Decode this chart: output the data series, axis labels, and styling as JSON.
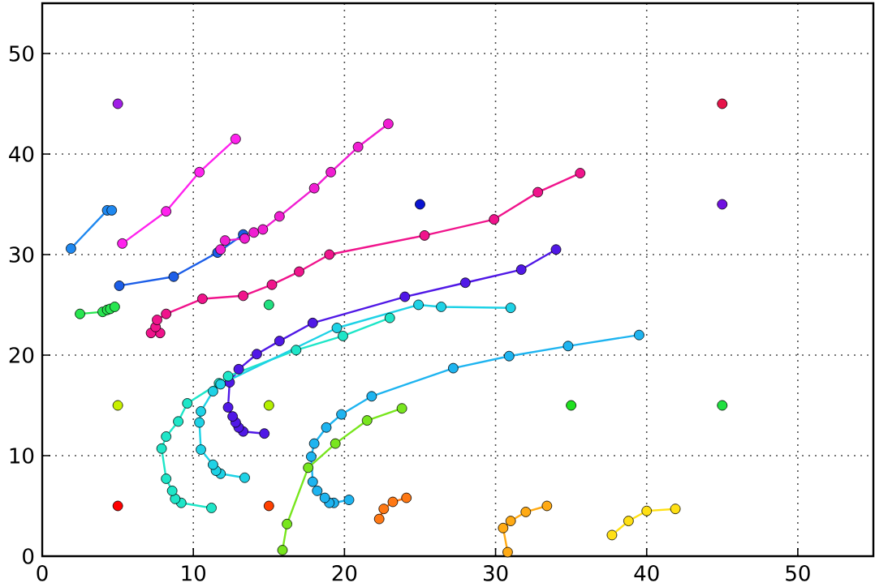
{
  "chart_data": {
    "type": "line",
    "xlim": [
      0,
      55
    ],
    "ylim": [
      0,
      55
    ],
    "xticks": [
      0,
      10,
      20,
      30,
      40,
      50
    ],
    "yticks": [
      0,
      10,
      20,
      30,
      40,
      50
    ],
    "grid": true,
    "marker": "circle",
    "line_style": "solid",
    "series": [
      {
        "color": "#ff22ee",
        "x": [
          5.3,
          8.2,
          10.4,
          12.8
        ],
        "values": [
          31.1,
          34.3,
          38.2,
          41.5
        ]
      },
      {
        "color": "#1e88f0",
        "x": [
          1.9,
          4.3,
          4.6
        ],
        "values": [
          30.6,
          34.4,
          34.4
        ]
      },
      {
        "color": "#1c5ee8",
        "x": [
          5.1,
          8.7,
          11.6,
          13.3
        ],
        "values": [
          26.9,
          27.8,
          30.2,
          32.0
        ]
      },
      {
        "color": "#f01ed2",
        "x": [
          11.8,
          12.1,
          13.4,
          14.0,
          14.6,
          15.7,
          18.0,
          19.1,
          20.9,
          22.9
        ],
        "values": [
          30.5,
          31.4,
          31.6,
          32.2,
          32.5,
          33.8,
          36.6,
          38.2,
          40.7,
          43.0
        ]
      },
      {
        "color": "#f0148c",
        "x": [
          7.8,
          7.2,
          7.5,
          7.6,
          8.2,
          10.6,
          13.3,
          15.2,
          17.0,
          19.0,
          25.3,
          29.9,
          32.8,
          35.6
        ],
        "values": [
          22.2,
          22.2,
          22.8,
          23.5,
          24.1,
          25.6,
          25.9,
          27.0,
          28.3,
          30.0,
          31.9,
          33.5,
          36.2,
          38.1
        ]
      },
      {
        "color": "#28e650",
        "x": [
          2.5,
          4.0,
          4.3,
          4.5,
          4.8
        ],
        "values": [
          24.1,
          24.3,
          24.5,
          24.6,
          24.8
        ]
      },
      {
        "color": "#5018e6",
        "x": [
          14.7,
          13.3,
          13.0,
          12.8,
          12.6,
          12.3,
          12.4,
          13.0,
          14.2,
          15.7,
          17.9,
          24.0,
          28.0,
          31.7,
          34.0
        ],
        "values": [
          12.2,
          12.4,
          12.8,
          13.3,
          13.9,
          14.8,
          17.3,
          18.6,
          20.1,
          21.4,
          23.2,
          25.8,
          27.2,
          28.5,
          30.5
        ]
      },
      {
        "color": "#1ee6c8",
        "x": [
          11.2,
          9.2,
          8.8,
          8.6,
          8.2,
          7.9,
          8.2,
          9.0,
          9.6,
          11.7,
          12.3,
          16.8,
          19.9,
          23.0
        ],
        "values": [
          4.8,
          5.3,
          5.7,
          6.5,
          7.7,
          10.7,
          11.9,
          13.4,
          15.2,
          17.2,
          17.9,
          20.5,
          21.9,
          23.7
        ]
      },
      {
        "color": "#1ed2e6",
        "x": [
          13.4,
          11.8,
          11.5,
          11.3,
          10.5,
          10.4,
          10.5,
          11.3,
          11.8,
          19.5,
          24.9,
          26.4,
          31.0
        ],
        "values": [
          7.8,
          8.2,
          8.5,
          9.1,
          10.6,
          13.3,
          14.4,
          16.4,
          17.1,
          22.7,
          25.0,
          24.8,
          24.7
        ]
      },
      {
        "color": "#1eb4f0",
        "x": [
          20.3,
          19.3,
          19.0,
          18.7,
          18.2,
          17.9,
          17.8,
          18.0,
          18.8,
          19.8,
          21.8,
          27.2,
          30.9,
          34.8,
          39.5
        ],
        "values": [
          5.6,
          5.3,
          5.3,
          5.8,
          6.5,
          7.4,
          9.9,
          11.2,
          12.8,
          14.1,
          15.9,
          18.7,
          19.9,
          20.9,
          22.0
        ]
      },
      {
        "color": "#78e61e",
        "x": [
          15.9,
          16.2,
          17.6,
          19.4,
          21.5,
          23.8
        ],
        "values": [
          0.6,
          3.2,
          8.8,
          11.2,
          13.5,
          14.7
        ]
      },
      {
        "color": "#ff7814",
        "x": [
          22.3,
          22.6,
          23.2,
          24.1
        ],
        "values": [
          3.7,
          4.7,
          5.4,
          5.8
        ]
      },
      {
        "color": "#ffaa14",
        "x": [
          30.8,
          30.5,
          31.0,
          32.0,
          33.4
        ],
        "values": [
          0.4,
          2.8,
          3.5,
          4.4,
          5.0
        ]
      },
      {
        "color": "#ffe014",
        "x": [
          37.7,
          38.8,
          40.0,
          41.9
        ],
        "values": [
          2.1,
          3.5,
          4.5,
          4.7
        ]
      },
      {
        "type": "scatter",
        "x": [
          5,
          45,
          25,
          45,
          15,
          5,
          15,
          35,
          45,
          5,
          15
        ],
        "values": [
          45,
          45,
          35,
          35,
          25,
          15,
          15,
          15,
          15,
          5,
          5
        ],
        "colors": [
          "#a01ee6",
          "#e6144a",
          "#0a14d2",
          "#7010e0",
          "#20e080",
          "#c8f000",
          "#b4f000",
          "#20e020",
          "#20e040",
          "#ff0000",
          "#ff4000"
        ]
      }
    ]
  }
}
